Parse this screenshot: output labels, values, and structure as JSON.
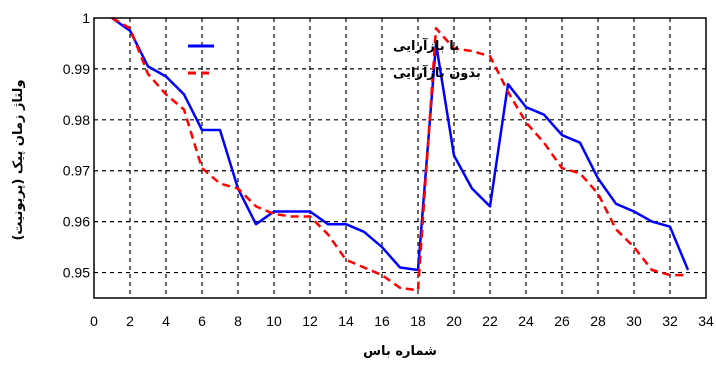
{
  "chart_data": {
    "type": "line",
    "xlabel": "شماره باس",
    "ylabel": "ولتاژ زمان پیک (پریونیت)",
    "xlim": [
      0,
      34
    ],
    "ylim": [
      0.945,
      1.0
    ],
    "x_ticks": [
      "0",
      "2",
      "4",
      "6",
      "8",
      "10",
      "12",
      "14",
      "16",
      "18",
      "20",
      "22",
      "24",
      "26",
      "28",
      "30",
      "32",
      "34"
    ],
    "y_ticks": [
      "0.95",
      "0.96",
      "0.97",
      "0.98",
      "0.99",
      "1"
    ],
    "y_tick_values": [
      0.95,
      0.96,
      0.97,
      0.98,
      0.99,
      1.0
    ],
    "grid": true,
    "legend_position": "top",
    "x": [
      1,
      2,
      3,
      4,
      5,
      6,
      7,
      8,
      9,
      10,
      11,
      12,
      13,
      14,
      15,
      16,
      17,
      18,
      19,
      20,
      21,
      22,
      23,
      24,
      25,
      26,
      27,
      28,
      29,
      30,
      31,
      32,
      33
    ],
    "series": [
      {
        "name": "با بازآرایی",
        "color": "#0000ff",
        "style": "solid",
        "values": [
          1.0,
          0.9975,
          0.9905,
          0.9885,
          0.985,
          0.978,
          0.978,
          0.9665,
          0.9595,
          0.962,
          0.962,
          0.962,
          0.9595,
          0.9595,
          0.958,
          0.955,
          0.951,
          0.9505,
          0.995,
          0.973,
          0.9665,
          0.963,
          0.987,
          0.9825,
          0.981,
          0.977,
          0.9755,
          0.9685,
          0.9635,
          0.962,
          0.96,
          0.959,
          0.9505
        ]
      },
      {
        "name": "بدون بازآرایی",
        "color": "#ff0000",
        "style": "dashed",
        "values": [
          1.0,
          0.998,
          0.989,
          0.985,
          0.982,
          0.9705,
          0.9675,
          0.9665,
          0.963,
          0.9615,
          0.961,
          0.961,
          0.9575,
          0.9525,
          0.951,
          0.9495,
          0.947,
          0.9465,
          0.998,
          0.994,
          0.9935,
          0.9925,
          0.9855,
          0.9795,
          0.9755,
          0.9705,
          0.9695,
          0.9655,
          0.9585,
          0.955,
          0.9505,
          0.9495,
          0.9495
        ]
      }
    ]
  }
}
